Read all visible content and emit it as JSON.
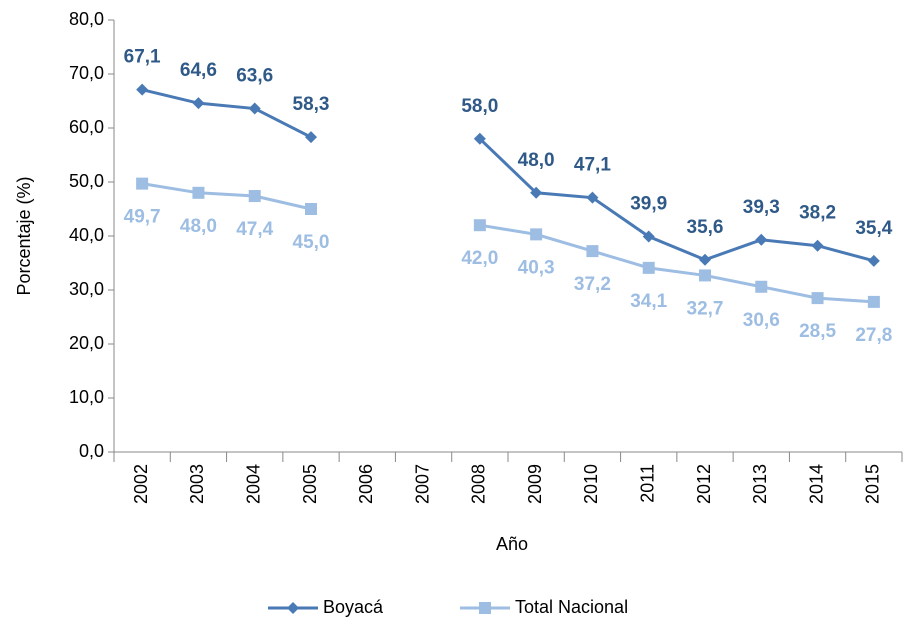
{
  "chart_data": {
    "type": "line",
    "x_label": "Año",
    "y_label": "Porcentaje (%)",
    "categories": [
      "2002",
      "2003",
      "2004",
      "2005",
      "2006",
      "2007",
      "2008",
      "2009",
      "2010",
      "2011",
      "2012",
      "2013",
      "2014",
      "2015"
    ],
    "ylim": [
      0,
      80
    ],
    "yticks": [
      {
        "value": 0,
        "label": "0,0"
      },
      {
        "value": 10,
        "label": "10,0"
      },
      {
        "value": 20,
        "label": "20,0"
      },
      {
        "value": 30,
        "label": "30,0"
      },
      {
        "value": 40,
        "label": "40,0"
      },
      {
        "value": 50,
        "label": "50,0"
      },
      {
        "value": 60,
        "label": "60,0"
      },
      {
        "value": 70,
        "label": "70,0"
      },
      {
        "value": 80,
        "label": "80,0"
      }
    ],
    "grid": false,
    "legend": "bottom",
    "series": [
      {
        "name": "Boyacá",
        "color": "#4a7ab5",
        "label_color": "#2f5987",
        "marker": "diamond",
        "label_position": "above",
        "values": [
          67.1,
          64.6,
          63.6,
          58.3,
          null,
          null,
          58.0,
          48.0,
          47.1,
          39.9,
          35.6,
          39.3,
          38.2,
          35.4
        ],
        "value_labels": [
          "67,1",
          "64,6",
          "63,6",
          "58,3",
          null,
          null,
          "58,0",
          "48,0",
          "47,1",
          "39,9",
          "35,6",
          "39,3",
          "38,2",
          "35,4"
        ]
      },
      {
        "name": "Total Nacional",
        "color": "#9dbde3",
        "label_color": "#9dbde3",
        "marker": "square",
        "label_position": "below",
        "values": [
          49.7,
          48.0,
          47.4,
          45.0,
          null,
          null,
          42.0,
          40.3,
          37.2,
          34.1,
          32.7,
          30.6,
          28.5,
          27.8
        ],
        "value_labels": [
          "49,7",
          "48,0",
          "47,4",
          "45,0",
          null,
          null,
          "42,0",
          "40,3",
          "37,2",
          "34,1",
          "32,7",
          "30,6",
          "28,5",
          "27,8"
        ]
      }
    ]
  }
}
